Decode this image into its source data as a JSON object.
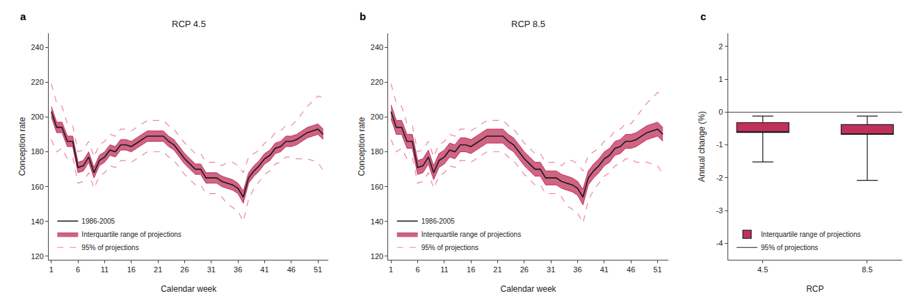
{
  "chart_data": [
    {
      "type": "line",
      "title": "RCP 4.5",
      "x_label": "Calendar week",
      "y_label": "Conception rate",
      "annotations": [
        "a"
      ],
      "grid": false,
      "legend": "lower left",
      "xlim": [
        0.5,
        53
      ],
      "xticks": [
        1,
        6,
        11,
        16,
        21,
        26,
        31,
        36,
        41,
        46,
        51
      ],
      "ylim": [
        118,
        248
      ],
      "yticks": [
        120,
        140,
        160,
        180,
        200,
        220,
        240
      ],
      "x": [
        1,
        2,
        3,
        4,
        5,
        6,
        7,
        8,
        9,
        10,
        11,
        12,
        13,
        14,
        15,
        16,
        17,
        18,
        19,
        20,
        21,
        22,
        23,
        24,
        25,
        26,
        27,
        28,
        29,
        30,
        31,
        32,
        33,
        34,
        35,
        36,
        37,
        38,
        39,
        40,
        41,
        42,
        43,
        44,
        45,
        46,
        47,
        48,
        49,
        50,
        51,
        52
      ],
      "series": [
        {
          "name": "1986-2005",
          "type": "line",
          "line_style": "solid",
          "color": "#1a1a1a",
          "values": [
            203,
            194,
            194,
            186,
            186,
            171,
            172,
            177,
            168,
            175,
            177,
            181,
            180,
            184,
            184,
            183,
            185,
            187,
            189,
            189,
            189,
            189,
            186,
            184,
            180,
            176,
            173,
            170,
            170,
            165,
            165,
            165,
            163,
            162,
            161,
            159,
            154,
            165,
            169,
            172,
            176,
            178,
            182,
            183,
            186,
            186,
            187,
            189,
            191,
            192,
            193,
            190
          ]
        },
        {
          "name": "Interquartile range of projections",
          "type": "band",
          "color": "#c0305a",
          "upper": [
            206,
            197,
            197,
            189,
            189,
            174,
            175,
            180,
            171,
            178,
            180,
            184,
            183,
            187,
            187,
            186,
            188,
            190,
            192,
            192,
            192,
            192,
            189,
            187,
            183,
            179,
            176,
            173,
            173,
            168,
            168,
            168,
            166,
            165,
            164,
            162,
            157.5,
            168,
            172,
            175,
            179,
            181,
            185,
            186,
            189,
            189,
            190,
            192,
            194,
            195,
            196,
            193
          ],
          "lower": [
            200,
            191,
            191,
            183,
            183,
            168,
            169,
            174,
            165,
            172,
            174,
            178,
            177,
            181,
            181,
            180,
            182,
            184,
            186,
            186,
            186,
            186,
            183,
            181,
            177,
            173,
            170,
            167,
            167,
            162,
            162,
            162,
            160,
            159,
            158,
            156,
            150.5,
            162,
            166,
            169,
            173,
            175,
            179,
            180,
            183,
            183,
            184,
            186,
            188,
            189,
            190,
            187
          ]
        },
        {
          "name": "95% of projections",
          "type": "line",
          "line_style": "dashed",
          "color": "#e8799a",
          "upper": [
            219,
            208,
            206,
            196,
            195,
            180,
            181,
            186,
            177,
            184,
            186,
            190,
            189,
            193,
            193,
            192,
            194,
            196,
            198,
            198,
            198,
            198,
            195,
            193,
            189,
            185,
            182,
            179,
            179,
            174,
            174,
            174,
            172,
            174,
            174,
            172,
            168,
            177,
            179,
            181,
            185,
            187,
            191,
            192,
            195,
            195,
            198,
            202,
            206,
            209,
            212,
            211
          ],
          "lower": [
            187,
            180,
            182,
            176,
            177,
            162,
            163,
            168,
            159,
            166,
            168,
            172,
            171,
            175,
            175,
            174,
            176,
            178,
            180,
            180,
            180,
            180,
            177,
            175,
            171,
            167,
            164,
            161,
            161,
            156,
            156,
            156,
            154,
            150,
            148,
            146,
            140,
            153,
            159,
            163,
            167,
            169,
            173,
            174,
            177,
            177,
            176,
            176,
            176,
            175,
            174,
            169
          ]
        }
      ]
    },
    {
      "type": "line",
      "title": "RCP 8.5",
      "x_label": "Calendar week",
      "y_label": "Conception rate",
      "annotations": [
        "b"
      ],
      "grid": false,
      "legend": "lower left",
      "xlim": [
        0.5,
        53
      ],
      "xticks": [
        1,
        6,
        11,
        16,
        21,
        26,
        31,
        36,
        41,
        46,
        51
      ],
      "ylim": [
        118,
        248
      ],
      "yticks": [
        120,
        140,
        160,
        180,
        200,
        220,
        240
      ],
      "x": [
        1,
        2,
        3,
        4,
        5,
        6,
        7,
        8,
        9,
        10,
        11,
        12,
        13,
        14,
        15,
        16,
        17,
        18,
        19,
        20,
        21,
        22,
        23,
        24,
        25,
        26,
        27,
        28,
        29,
        30,
        31,
        32,
        33,
        34,
        35,
        36,
        37,
        38,
        39,
        40,
        41,
        42,
        43,
        44,
        45,
        46,
        47,
        48,
        49,
        50,
        51,
        52
      ],
      "series": [
        {
          "name": "1986-2005",
          "type": "line",
          "line_style": "solid",
          "color": "#1a1a1a",
          "values": [
            203,
            194,
            194,
            186,
            186,
            171,
            172,
            177,
            168,
            175,
            177,
            181,
            180,
            184,
            184,
            183,
            185,
            187,
            189,
            189,
            189,
            189,
            186,
            184,
            180,
            176,
            173,
            170,
            170,
            165,
            165,
            165,
            163,
            162,
            161,
            159,
            154,
            165,
            169,
            172,
            176,
            178,
            182,
            183,
            186,
            186,
            187,
            189,
            191,
            192,
            193,
            190
          ]
        },
        {
          "name": "Interquartile range of projections",
          "type": "band",
          "color": "#c0305a",
          "upper": [
            207,
            198,
            198,
            190,
            190,
            175,
            176,
            181,
            172,
            179,
            181,
            185,
            184,
            188,
            188,
            187,
            189,
            191,
            193,
            193,
            193,
            193,
            190,
            188,
            184,
            180,
            177,
            174,
            174,
            169,
            169,
            169,
            167,
            166,
            165,
            163,
            158.5,
            169,
            173,
            176,
            180,
            182,
            186,
            187,
            190,
            190,
            191,
            193,
            195,
            196,
            197,
            194
          ],
          "lower": [
            199,
            190,
            190,
            182,
            182,
            167,
            168,
            173,
            164,
            171,
            173,
            177,
            176,
            180,
            180,
            179,
            181,
            183,
            185,
            185,
            185,
            185,
            182,
            180,
            176,
            172,
            169,
            166,
            166,
            161,
            161,
            161,
            159,
            158,
            157,
            155,
            149.5,
            161,
            165,
            168,
            172,
            174,
            178,
            179,
            182,
            182,
            183,
            185,
            187,
            188,
            189,
            186
          ]
        },
        {
          "name": "95% of projections",
          "type": "line",
          "line_style": "dashed",
          "color": "#e8799a",
          "upper": [
            219,
            208,
            206,
            196,
            195,
            180,
            181,
            186,
            177,
            184,
            186,
            190,
            189,
            193,
            193,
            192,
            194,
            196,
            198,
            198,
            198,
            198,
            195,
            193,
            189,
            185,
            182,
            179,
            179,
            174,
            174,
            174,
            172,
            175,
            175,
            173,
            169,
            178,
            180,
            182,
            186,
            188,
            192,
            193,
            196,
            196,
            200,
            204,
            208,
            211,
            214,
            213
          ],
          "lower": [
            187,
            180,
            182,
            176,
            177,
            162,
            163,
            168,
            159,
            166,
            168,
            172,
            171,
            175,
            175,
            174,
            176,
            178,
            180,
            180,
            180,
            180,
            177,
            175,
            171,
            167,
            164,
            161,
            161,
            156,
            156,
            156,
            154,
            149,
            147,
            145,
            139,
            152,
            158,
            162,
            166,
            168,
            172,
            173,
            176,
            176,
            174,
            174,
            174,
            173,
            172,
            167
          ]
        }
      ]
    },
    {
      "type": "box",
      "x_label": "RCP",
      "y_label": "Annual change (%)",
      "annotations": [
        "c"
      ],
      "grid": false,
      "legend": "lower left",
      "categories": [
        "4.5",
        "8.5"
      ],
      "ylim": [
        -4.5,
        2.4
      ],
      "yticks": [
        2,
        1,
        0,
        -1,
        -2,
        -3,
        -4
      ],
      "series": [
        {
          "name": "Interquartile range of projections",
          "color": "#c0305a",
          "q1": [
            -0.62,
            -0.68
          ],
          "q3": [
            -0.32,
            -0.38
          ]
        },
        {
          "name": "95% of projections",
          "color": "#1a1a1a",
          "whisker_low": [
            -1.52,
            -2.08
          ],
          "whisker_high": [
            -0.12,
            -0.12
          ]
        }
      ]
    }
  ]
}
